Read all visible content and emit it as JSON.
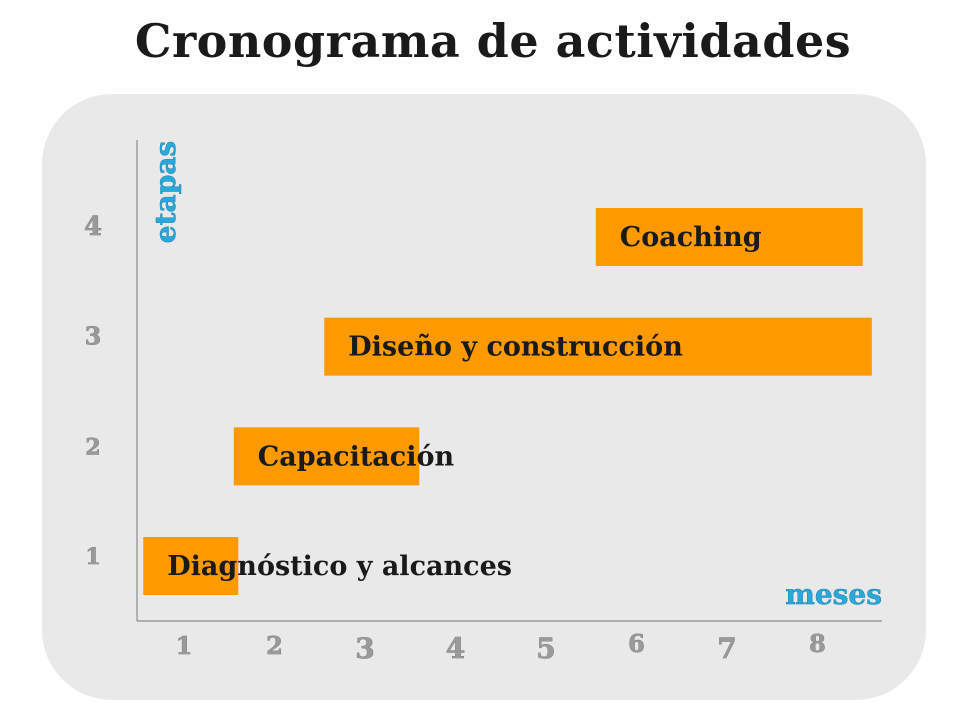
{
  "chart_data": {
    "type": "bar",
    "orientation": "horizontal-gantt",
    "title": "Cronograma de actividades",
    "xlabel": "meses",
    "ylabel": "etapas",
    "x_ticks": [
      "1",
      "2",
      "3",
      "4",
      "5",
      "6",
      "7",
      "8"
    ],
    "y_ticks": [
      "1",
      "2",
      "3",
      "4"
    ],
    "xlim": [
      0.5,
      8.6
    ],
    "ylim": [
      0.5,
      4.6
    ],
    "grid": false,
    "bar_color": "#ff9900",
    "tasks": [
      {
        "name": "Diagnóstico y alcances",
        "stage": 1,
        "start": 0.55,
        "end": 1.6
      },
      {
        "name": "Capacitación",
        "stage": 2,
        "start": 1.55,
        "end": 3.6
      },
      {
        "name": "Diseño y construcción",
        "stage": 3,
        "start": 2.55,
        "end": 8.6
      },
      {
        "name": "Coaching",
        "stage": 4,
        "start": 5.55,
        "end": 8.5
      }
    ]
  }
}
